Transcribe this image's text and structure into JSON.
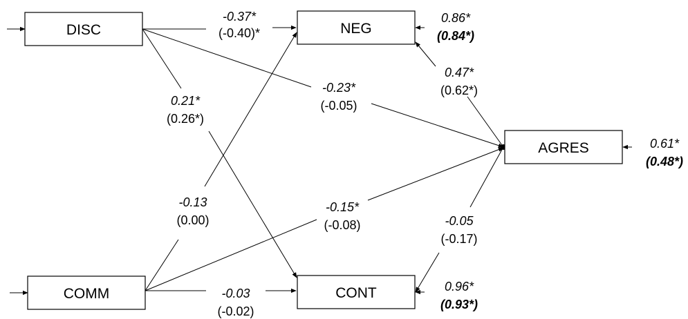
{
  "nodes": {
    "disc": "DISC",
    "neg": "NEG",
    "comm": "COMM",
    "cont": "CONT",
    "agres": "AGRES"
  },
  "paths": {
    "disc_neg": {
      "std": "-0.37*",
      "alt": "(-0.40)*"
    },
    "disc_cont": {
      "std": "0.21*",
      "alt": "(0.26*)"
    },
    "disc_agres": {
      "std": "-0.23*",
      "alt": "(-0.05)"
    },
    "comm_neg": {
      "std": "-0.13",
      "alt": "(0.00)"
    },
    "comm_agres": {
      "std": "-0.15*",
      "alt": "(-0.08)"
    },
    "comm_cont": {
      "std": "-0.03",
      "alt": "(-0.02)"
    },
    "agres_neg": {
      "std": "0.47*",
      "alt": "(0.62*)"
    },
    "agres_cont": {
      "std": "-0.05",
      "alt": "(-0.17)"
    }
  },
  "residuals": {
    "neg": {
      "std": "0.86*",
      "alt": "(0.84*)"
    },
    "agres": {
      "std": "0.61*",
      "alt": "(0.48*)"
    },
    "cont": {
      "std": "0.96*",
      "alt": "(0.93*)"
    }
  }
}
